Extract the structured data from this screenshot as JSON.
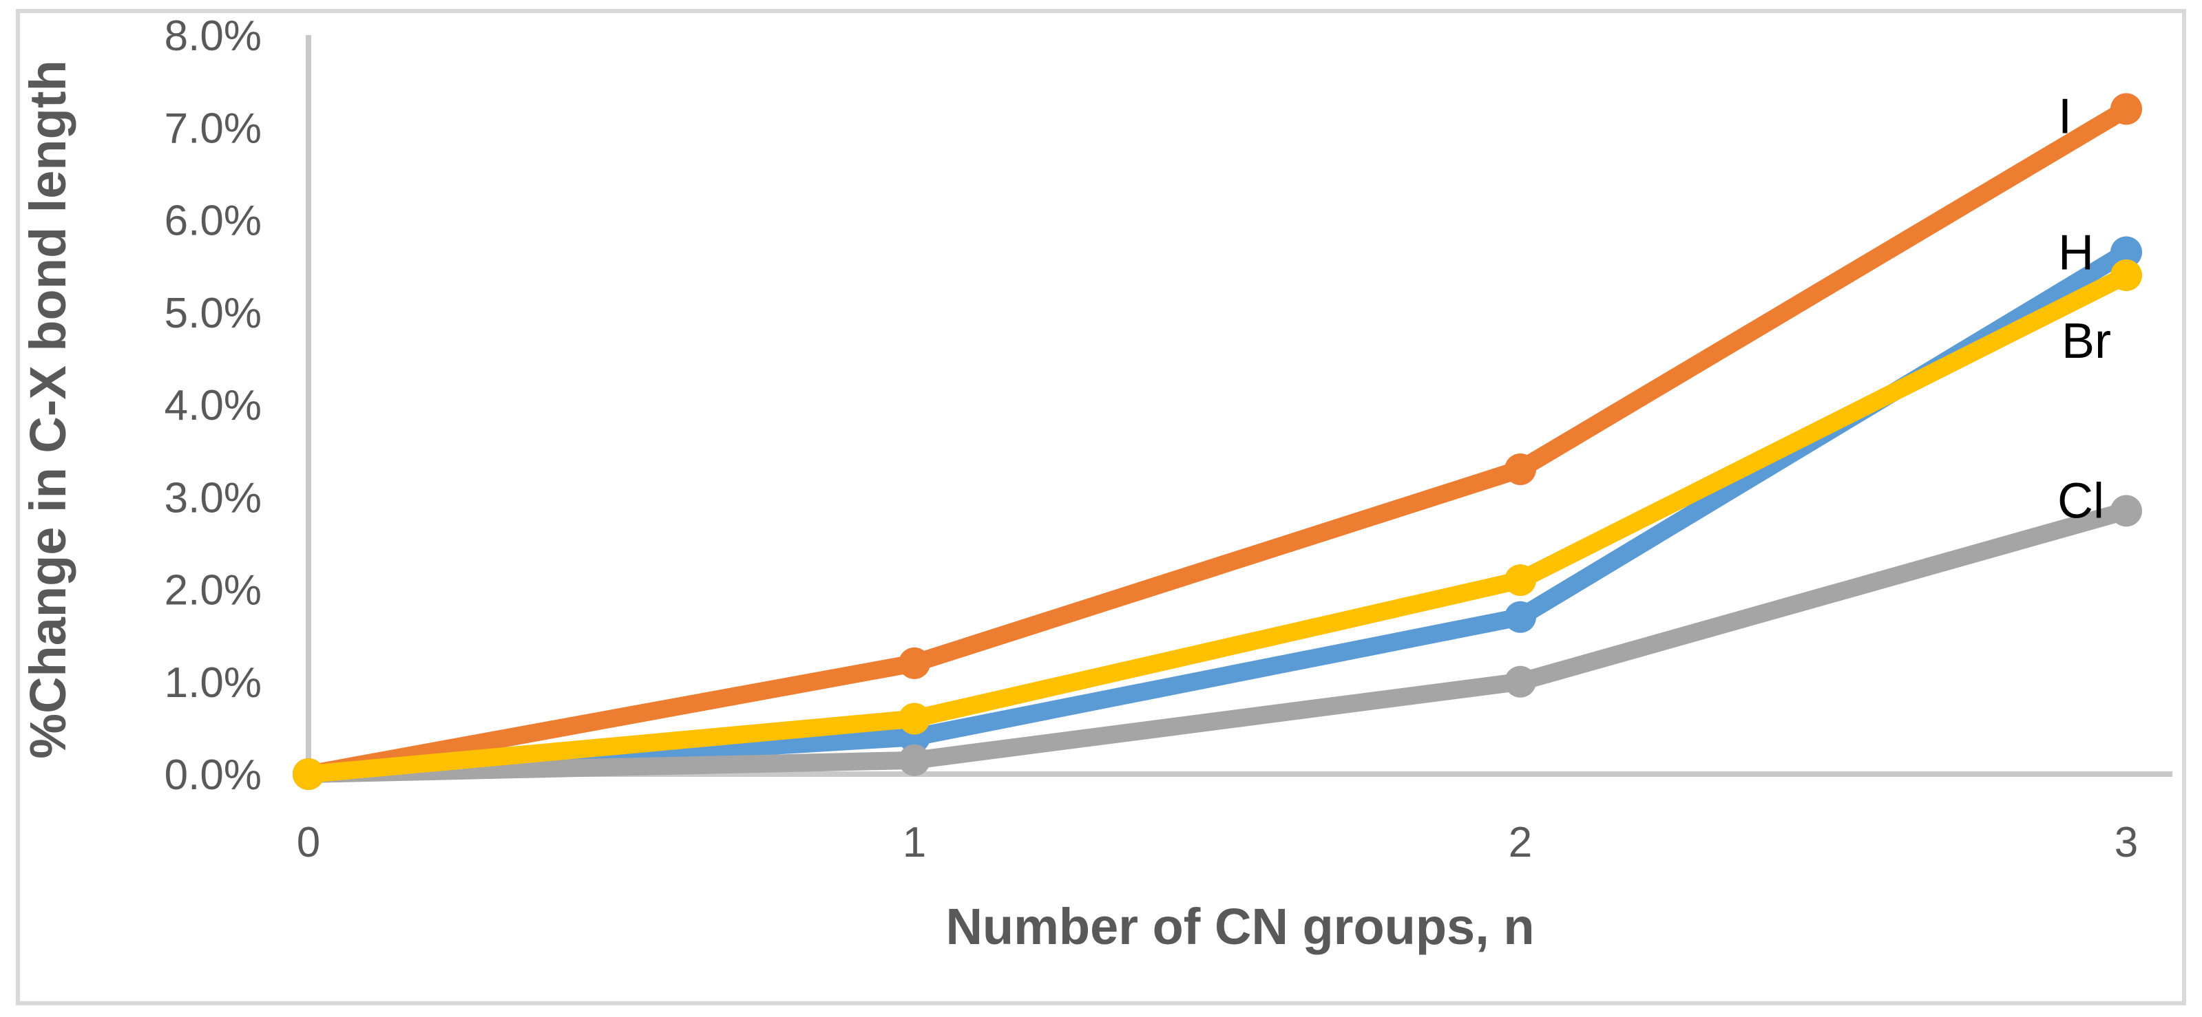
{
  "figure": {
    "background_color": "#ffffff",
    "border_color": "#d9d9d9"
  },
  "chart_data": {
    "type": "line",
    "title": "",
    "xlabel": "Number of CN groups, n",
    "ylabel": "%Change in C-X bond length",
    "x": [
      0,
      1,
      2,
      3
    ],
    "x_tick_labels": [
      "0",
      "1",
      "2",
      "3"
    ],
    "y_tick_labels": [
      "0.0%",
      "1.0%",
      "2.0%",
      "3.0%",
      "4.0%",
      "5.0%",
      "6.0%",
      "7.0%",
      "8.0%"
    ],
    "ylim": [
      0,
      8
    ],
    "y_tick_step": 1.0,
    "grid": false,
    "legend_position": "series labels at right ends of lines",
    "axis_color": "#c9c9c9",
    "tick_label_color": "#595959",
    "axis_title_color": "#595959",
    "series_label_color": "#000000",
    "series": [
      {
        "name": "I",
        "color": "#ED7D31",
        "values": [
          0.0,
          1.2,
          3.3,
          7.2
        ],
        "label_dx": -89,
        "label_dy": 10
      },
      {
        "name": "H",
        "color": "#5B9BD5",
        "values": [
          0.0,
          0.4,
          1.7,
          5.65
        ],
        "label_dx": -73,
        "label_dy": 0
      },
      {
        "name": "Br",
        "color": "#FFC000",
        "values": [
          0.0,
          0.6,
          2.1,
          5.4
        ],
        "label_dx": -58,
        "label_dy": 95
      },
      {
        "name": "Cl",
        "color": "#A5A5A5",
        "values": [
          0.0,
          0.15,
          1.0,
          2.85
        ],
        "label_dx": -66,
        "label_dy": -15
      }
    ]
  }
}
